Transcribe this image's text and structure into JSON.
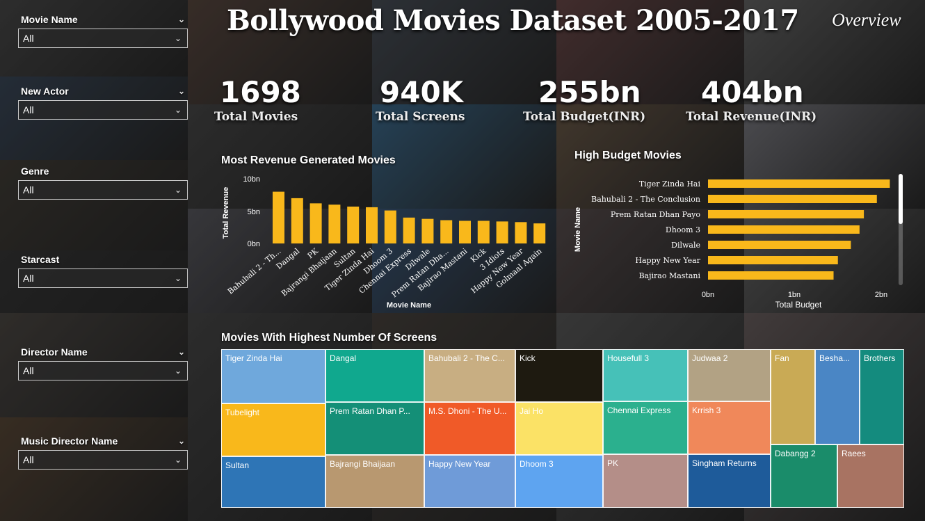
{
  "title": "Bollywood Movies Dataset 2005-2017",
  "page_label": "Overview",
  "slicers": [
    {
      "label": "Movie Name",
      "value": "All"
    },
    {
      "label": "New Actor",
      "value": "All"
    },
    {
      "label": "Genre",
      "value": "All"
    },
    {
      "label": "Starcast",
      "value": "All"
    },
    {
      "label": "Director Name",
      "value": "All"
    },
    {
      "label": "Music Director Name",
      "value": "All"
    }
  ],
  "kpis": [
    {
      "value": "1698",
      "label": "Total Movies"
    },
    {
      "value": "940K",
      "label": "Total Screens"
    },
    {
      "value": "255bn",
      "label": "Total Budget(INR)"
    },
    {
      "value": "404bn",
      "label": "Total Revenue(INR)"
    }
  ],
  "colors": {
    "accent": "#F9B81B",
    "text": "#FFFFFF"
  },
  "chart_data": [
    {
      "type": "bar",
      "title": "Most Revenue Generated Movies",
      "xlabel": "Movie Name",
      "ylabel": "Total Revenue",
      "ylim": [
        0,
        10
      ],
      "yticks": [
        "0bn",
        "5bn",
        "10bn"
      ],
      "categories": [
        "Bahubali 2 - Th...",
        "Dangal",
        "PK",
        "Bajrangi Bhaijaan",
        "Sultan",
        "Tiger Zinda Hai",
        "Dhoom 3",
        "Chennai Express",
        "Dilwale",
        "Prem Ratan Dha...",
        "Bajirao Mastani",
        "Kick",
        "3 Idiots",
        "Happy New Year",
        "Golmaal Again"
      ],
      "values": [
        8.0,
        7.0,
        6.2,
        6.0,
        5.7,
        5.6,
        5.1,
        4.0,
        3.8,
        3.6,
        3.5,
        3.5,
        3.4,
        3.3,
        3.1
      ]
    },
    {
      "type": "bar",
      "orientation": "horizontal",
      "title": "High Budget Movies",
      "xlabel": "Total Budget",
      "ylabel": "Movie Name",
      "xlim": [
        0,
        2.1
      ],
      "xticks": [
        "0bn",
        "1bn",
        "2bn"
      ],
      "categories": [
        "Tiger Zinda Hai",
        "Bahubali 2 - The Conclusion",
        "Prem Ratan Dhan Payo",
        "Dhoom 3",
        "Dilwale",
        "Happy New Year",
        "Bajirao Mastani"
      ],
      "values": [
        2.1,
        1.95,
        1.8,
        1.75,
        1.65,
        1.5,
        1.45
      ]
    },
    {
      "type": "treemap",
      "title": "Movies With Highest Number Of Screens",
      "items": [
        {
          "name": "Tiger Zinda Hai",
          "color": "#6FA8DC"
        },
        {
          "name": "Tubelight",
          "color": "#F9B81B"
        },
        {
          "name": "Sultan",
          "color": "#2E75B6"
        },
        {
          "name": "Dangal",
          "color": "#10A88E"
        },
        {
          "name": "Prem Ratan Dhan P...",
          "color": "#148F77"
        },
        {
          "name": "Bajrangi Bhaijaan",
          "color": "#B89870"
        },
        {
          "name": "Bahubali 2 - The C...",
          "color": "#C8AE82"
        },
        {
          "name": "M.S. Dhoni - The U...",
          "color": "#F05A28"
        },
        {
          "name": "Happy New Year",
          "color": "#6F9BD8"
        },
        {
          "name": "Kick",
          "color": "#1E1A10"
        },
        {
          "name": "Jai Ho",
          "color": "#FBE266"
        },
        {
          "name": "Dhoom 3",
          "color": "#5EA4F0"
        },
        {
          "name": "Housefull 3",
          "color": "#46C1B8"
        },
        {
          "name": "Chennai Express",
          "color": "#2BB08E"
        },
        {
          "name": "PK",
          "color": "#B48E88"
        },
        {
          "name": "Judwaa 2",
          "color": "#B2A284"
        },
        {
          "name": "Krrish 3",
          "color": "#F0885A"
        },
        {
          "name": "Singham Returns",
          "color": "#1E5B9A"
        },
        {
          "name": "Fan",
          "color": "#C9AA55"
        },
        {
          "name": "Besha...",
          "color": "#4A86C5"
        },
        {
          "name": "Brothers",
          "color": "#148B7E"
        },
        {
          "name": "Dabangg 2",
          "color": "#1A8C6A"
        },
        {
          "name": "Raees",
          "color": "#A87362"
        }
      ]
    }
  ]
}
